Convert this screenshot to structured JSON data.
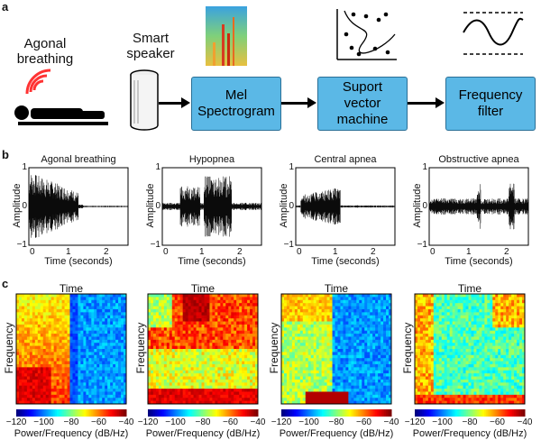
{
  "panels": {
    "a": "a",
    "b": "b",
    "c": "c"
  },
  "flow": {
    "agonal_label": "Agonal\nbreathing",
    "speaker_label": "Smart\nspeaker",
    "boxes": [
      "Mel\nSpectrogram",
      "Suport\nvector\nmachine",
      "Frequency\nfilter"
    ]
  },
  "waveforms": {
    "titles": [
      "Agonal breathing",
      "Hypopnea",
      "Central apnea",
      "Obstructive apnea"
    ],
    "ylabel": "Amplitude",
    "xlabel": "Time (seconds)",
    "yticks": [
      "1",
      "0",
      "−1"
    ],
    "xticks": [
      "0",
      "1",
      "2"
    ]
  },
  "spectrograms": {
    "title": "Time",
    "ylabel": "Frequency",
    "cbar_ticks": [
      "−120",
      "−100",
      "−80",
      "−60",
      "−40"
    ],
    "cbar_title": "Power/Frequency (dB/Hz)"
  },
  "colors": {
    "box": "#5bb8e6",
    "arrow": "#000000",
    "signal": "#ff3333"
  }
}
